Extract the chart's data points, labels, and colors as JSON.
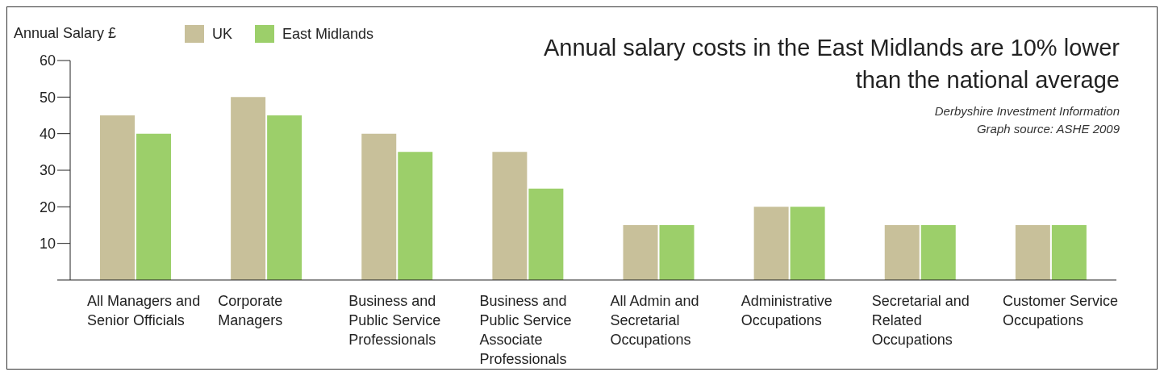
{
  "chart_data": {
    "type": "bar",
    "title": "Annual salary costs in the East Midlands are 10% lower than the national average",
    "ylabel": "Annual Salary £",
    "annotations": [
      "Derbyshire Investment Information",
      "Graph source: ASHE 2009"
    ],
    "categories": [
      "All Managers and Senior Officials",
      "Corporate Managers",
      "Business and Public Service Professionals",
      "Business and Public Service Associate Professionals",
      "All Admin and Secretarial Occupations",
      "Administrative Occupations",
      "Secretarial and Related Occupations",
      "Customer Service Occupations"
    ],
    "series": [
      {
        "name": "UK",
        "color": "#c8c09a",
        "values": [
          45,
          50,
          40,
          35,
          15,
          20,
          15,
          15
        ]
      },
      {
        "name": "East Midlands",
        "color": "#9ccf6a",
        "values": [
          40,
          45,
          35,
          25,
          15,
          20,
          15,
          15
        ]
      }
    ],
    "ylim": [
      0,
      60
    ],
    "yticks": [
      {
        "value": 0,
        "label": null
      },
      10,
      20,
      30,
      40,
      50,
      60
    ],
    "grid": false,
    "legend": "top left"
  }
}
